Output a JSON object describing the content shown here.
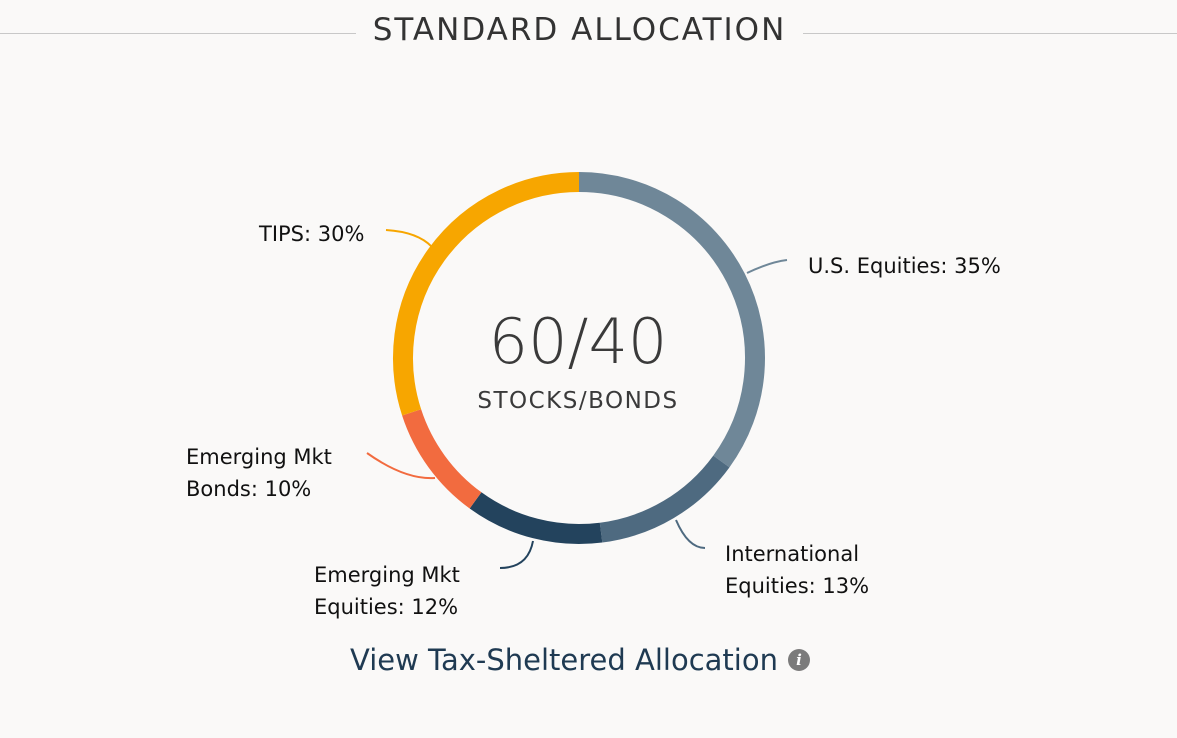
{
  "header": {
    "title": "STANDARD ALLOCATION"
  },
  "chart_data": {
    "type": "pie",
    "variant": "donut",
    "center_value": "60/40",
    "center_caption": "STOCKS/BONDS",
    "slices": [
      {
        "label": "U.S. Equities: 35%",
        "category": "U.S. Equities",
        "value": 35,
        "color": "#6f8798"
      },
      {
        "label": "International\nEquities: 13%",
        "category": "International Equities",
        "value": 13,
        "color": "#4e6a80"
      },
      {
        "label": "Emerging Mkt\nEquities: 12%",
        "category": "Emerging Mkt Equities",
        "value": 12,
        "color": "#23435d"
      },
      {
        "label": "Emerging Mkt\nBonds: 10%",
        "category": "Emerging Mkt Bonds",
        "value": 10,
        "color": "#f26b3f"
      },
      {
        "label": "TIPS: 30%",
        "category": "TIPS",
        "value": 30,
        "color": "#f7a600"
      }
    ]
  },
  "footer": {
    "link_label": "View Tax-Sheltered Allocation",
    "info_icon": "i"
  }
}
